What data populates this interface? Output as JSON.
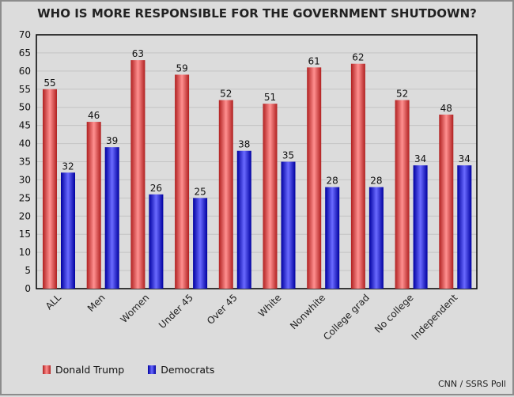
{
  "chart_data": {
    "type": "bar",
    "title": "WHO IS MORE RESPONSIBLE FOR THE GOVERNMENT SHUTDOWN?",
    "categories": [
      "ALL",
      "Men",
      "Women",
      "Under 45",
      "Over 45",
      "White",
      "Nonwhite",
      "College grad",
      "No college",
      "Independent"
    ],
    "series": [
      {
        "name": "Donald Trump",
        "color": "#e83c3c",
        "values": [
          55,
          46,
          63,
          59,
          52,
          51,
          61,
          62,
          52,
          48
        ]
      },
      {
        "name": "Democrats",
        "color": "#1010e0",
        "values": [
          32,
          39,
          26,
          25,
          38,
          35,
          28,
          28,
          34,
          34
        ]
      }
    ],
    "ylim": [
      0,
      70
    ],
    "yticks": [
      0,
      5,
      10,
      15,
      20,
      25,
      30,
      35,
      40,
      45,
      50,
      55,
      60,
      65,
      70
    ],
    "grid": true,
    "legend": "bottom-left",
    "source": "CNN / SSRS Poll"
  }
}
